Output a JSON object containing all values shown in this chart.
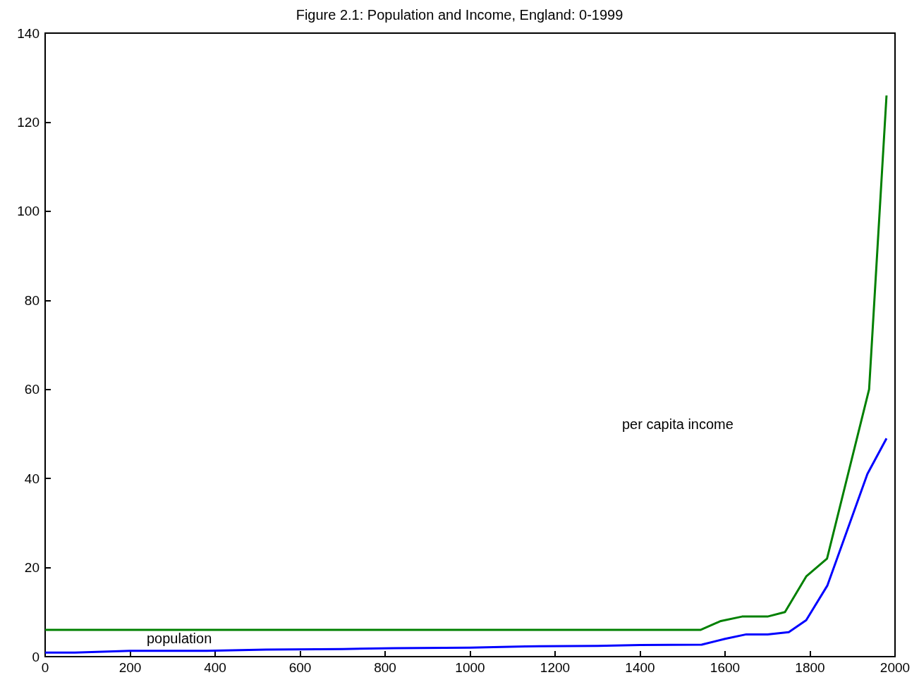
{
  "chart_data": {
    "type": "line",
    "title": "Figure 2.1: Population and Income, England: 0-1999",
    "series": [
      {
        "color": "#008000",
        "x": [
          0,
          1542,
          1590,
          1640,
          1700,
          1741,
          1791,
          1840,
          1939,
          1980
        ],
        "values": [
          6,
          6,
          8,
          9,
          9,
          10,
          18,
          22,
          60,
          126
        ]
      },
      {
        "color": "#0000ff",
        "x": [
          0,
          70,
          200,
          380,
          520,
          700,
          820,
          1000,
          1130,
          1300,
          1400,
          1545,
          1600,
          1650,
          1700,
          1750,
          1791,
          1841,
          1935,
          1980
        ],
        "values": [
          0.9,
          0.9,
          1.3,
          1.3,
          1.6,
          1.7,
          1.9,
          2.0,
          2.3,
          2.4,
          2.6,
          2.7,
          4,
          5,
          5,
          5.5,
          8.2,
          16,
          41,
          49
        ]
      }
    ],
    "annotations": [
      "per capita income",
      "population"
    ],
    "xlim": [
      0,
      2000
    ],
    "xticks": [
      0,
      200,
      400,
      600,
      800,
      1000,
      1200,
      1400,
      1600,
      1800,
      2000
    ],
    "ylim": [
      0,
      140
    ],
    "yticks": [
      0,
      20,
      40,
      60,
      80,
      100,
      120,
      140
    ],
    "grid": false,
    "marker": "none",
    "line_style": "solid"
  }
}
